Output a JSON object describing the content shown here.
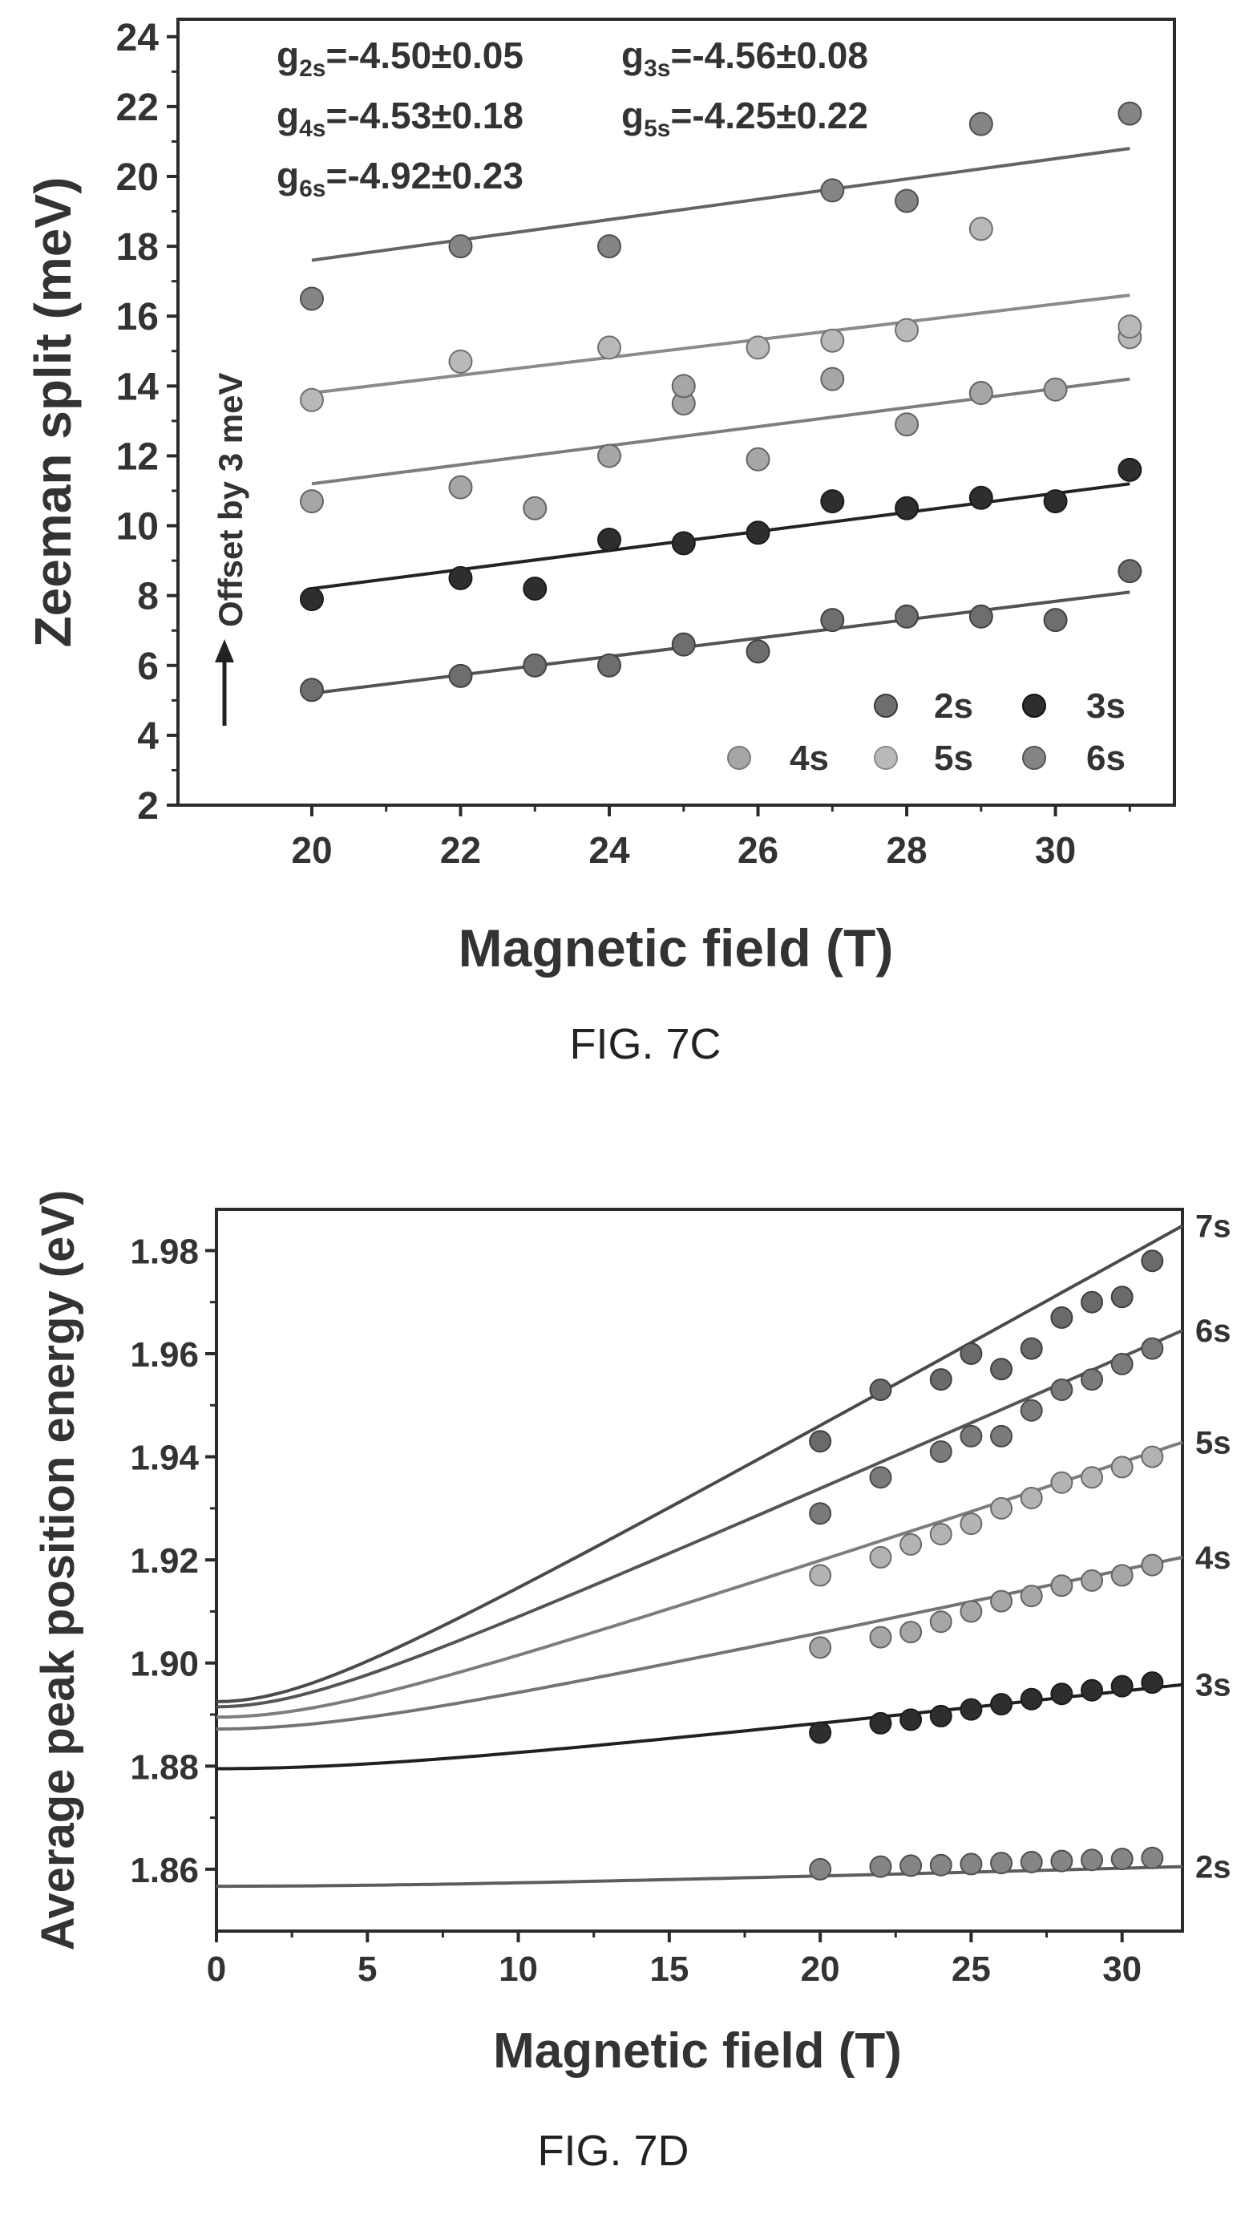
{
  "chart_data": [
    {
      "type": "scatter",
      "caption": "FIG. 7C",
      "xlabel": "Magnetic field (T)",
      "ylabel": "Zeeman split (meV)",
      "xlim": [
        18.2,
        31.6
      ],
      "ylim": [
        2,
        24.5
      ],
      "xticks": [
        20,
        22,
        24,
        26,
        28,
        30
      ],
      "yticks": [
        2,
        4,
        6,
        8,
        10,
        12,
        14,
        16,
        18,
        20,
        22,
        24
      ],
      "offset_note": "Offset by 3 meV",
      "annotations": [
        {
          "base": "g",
          "sub": "2s",
          "value": "=-4.50±0.05"
        },
        {
          "base": "g",
          "sub": "3s",
          "value": "=-4.56±0.08"
        },
        {
          "base": "g",
          "sub": "4s",
          "value": "=-4.53±0.18"
        },
        {
          "base": "g",
          "sub": "5s",
          "value": "=-4.25±0.22"
        },
        {
          "base": "g",
          "sub": "6s",
          "value": "=-4.92±0.23"
        }
      ],
      "legend_placement": "bottom-right",
      "series": [
        {
          "name": "2s",
          "color": "#6e6e6e",
          "x": [
            20,
            22,
            23,
            24,
            25,
            26,
            27,
            28,
            29,
            30,
            31
          ],
          "y": [
            5.3,
            5.7,
            6.0,
            6.0,
            6.6,
            6.4,
            7.3,
            7.4,
            7.4,
            7.3,
            8.7
          ],
          "fit": [
            [
              20,
              5.2
            ],
            [
              31,
              8.1
            ]
          ]
        },
        {
          "name": "3s",
          "color": "#2e2e2e",
          "x": [
            20,
            22,
            23,
            24,
            25,
            26,
            27,
            28,
            29,
            30,
            31
          ],
          "y": [
            7.9,
            8.5,
            8.2,
            9.6,
            9.5,
            9.8,
            10.7,
            10.5,
            10.8,
            10.7,
            11.6
          ],
          "fit": [
            [
              20,
              8.2
            ],
            [
              31,
              11.2
            ]
          ]
        },
        {
          "name": "4s",
          "color": "#a6a6a6",
          "x": [
            20,
            22,
            23,
            24,
            25,
            25,
            26,
            27,
            28,
            29,
            30
          ],
          "y": [
            10.7,
            11.1,
            10.5,
            12.0,
            13.5,
            14.0,
            11.9,
            14.2,
            12.9,
            13.8,
            13.9
          ],
          "fit": [
            [
              20,
              11.2
            ],
            [
              31,
              14.2
            ]
          ]
        },
        {
          "name": "5s",
          "color": "#b9b9b9",
          "x": [
            20,
            22,
            24,
            26,
            27,
            28,
            29,
            31,
            31
          ],
          "y": [
            13.6,
            14.7,
            15.1,
            15.1,
            15.3,
            15.6,
            18.5,
            15.4,
            15.7
          ],
          "fit": [
            [
              20,
              13.8
            ],
            [
              31,
              16.6
            ]
          ]
        },
        {
          "name": "6s",
          "color": "#858585",
          "x": [
            20,
            22,
            24,
            27,
            28,
            29,
            31
          ],
          "y": [
            16.5,
            18.0,
            18.0,
            19.6,
            19.3,
            21.5,
            21.8
          ],
          "fit": [
            [
              20,
              17.6
            ],
            [
              31,
              20.8
            ]
          ]
        }
      ]
    },
    {
      "type": "scatter",
      "caption": "FIG. 7D",
      "xlabel": "Magnetic field (T)",
      "ylabel": "Average peak position energy (eV)",
      "xlim": [
        0,
        32
      ],
      "ylim": [
        1.848,
        1.988
      ],
      "xticks": [
        0,
        5,
        10,
        15,
        20,
        25,
        30
      ],
      "yticks": [
        1.86,
        1.88,
        1.9,
        1.92,
        1.94,
        1.96,
        1.98
      ],
      "ytick_labels": [
        "1.86",
        "1.88",
        "1.90",
        "1.92",
        "1.94",
        "1.96",
        "1.98"
      ],
      "series": [
        {
          "name": "2s",
          "color": "#858585",
          "x": [
            20,
            22,
            23,
            24,
            25,
            26,
            27,
            28,
            29,
            30,
            31
          ],
          "y": [
            1.86,
            1.8605,
            1.8607,
            1.8608,
            1.861,
            1.8612,
            1.8614,
            1.8616,
            1.8618,
            1.862,
            1.8622
          ],
          "curve": {
            "e0": 1.8567,
            "x0": 10,
            "end": 1.8605
          },
          "label_value": 1.8605
        },
        {
          "name": "3s",
          "color": "#2e2e2e",
          "x": [
            20,
            22,
            23,
            24,
            25,
            26,
            27,
            28,
            29,
            30,
            31
          ],
          "y": [
            1.8865,
            1.8883,
            1.889,
            1.8897,
            1.891,
            1.892,
            1.893,
            1.894,
            1.8947,
            1.8955,
            1.8962
          ],
          "curve": {
            "e0": 1.8795,
            "x0": 8,
            "end": 1.8958
          },
          "label_value": 1.8958
        },
        {
          "name": "4s",
          "color": "#a6a6a6",
          "x": [
            20,
            22,
            23,
            24,
            25,
            26,
            27,
            28,
            29,
            30,
            31
          ],
          "y": [
            1.903,
            1.905,
            1.906,
            1.908,
            1.91,
            1.912,
            1.913,
            1.915,
            1.916,
            1.917,
            1.919
          ],
          "curve": {
            "e0": 1.8872,
            "x0": 6,
            "end": 1.9205
          },
          "label_value": 1.9205
        },
        {
          "name": "5s",
          "color": "#b3b3b3",
          "x": [
            20,
            22,
            23,
            24,
            25,
            26,
            27,
            28,
            29,
            30,
            31
          ],
          "y": [
            1.917,
            1.9205,
            1.923,
            1.925,
            1.927,
            1.93,
            1.932,
            1.935,
            1.936,
            1.938,
            1.94
          ],
          "curve": {
            "e0": 1.8895,
            "x0": 5,
            "end": 1.9428
          },
          "label_value": 1.9428
        },
        {
          "name": "6s",
          "color": "#7a7a7a",
          "x": [
            20,
            22,
            24,
            25,
            26,
            27,
            28,
            29,
            30,
            31
          ],
          "y": [
            1.929,
            1.936,
            1.941,
            1.944,
            1.944,
            1.949,
            1.953,
            1.955,
            1.958,
            1.961
          ],
          "curve": {
            "e0": 1.8915,
            "x0": 4,
            "end": 1.9645
          },
          "label_value": 1.9645
        },
        {
          "name": "7s",
          "color": "#6a6a6a",
          "x": [
            20,
            22,
            24,
            25,
            26,
            27,
            28,
            29,
            30,
            31
          ],
          "y": [
            1.943,
            1.953,
            1.955,
            1.96,
            1.957,
            1.961,
            1.967,
            1.97,
            1.971,
            1.978
          ],
          "curve": {
            "e0": 1.8925,
            "x0": 4,
            "end": 1.9848
          },
          "label_value": 1.9848
        }
      ]
    }
  ]
}
